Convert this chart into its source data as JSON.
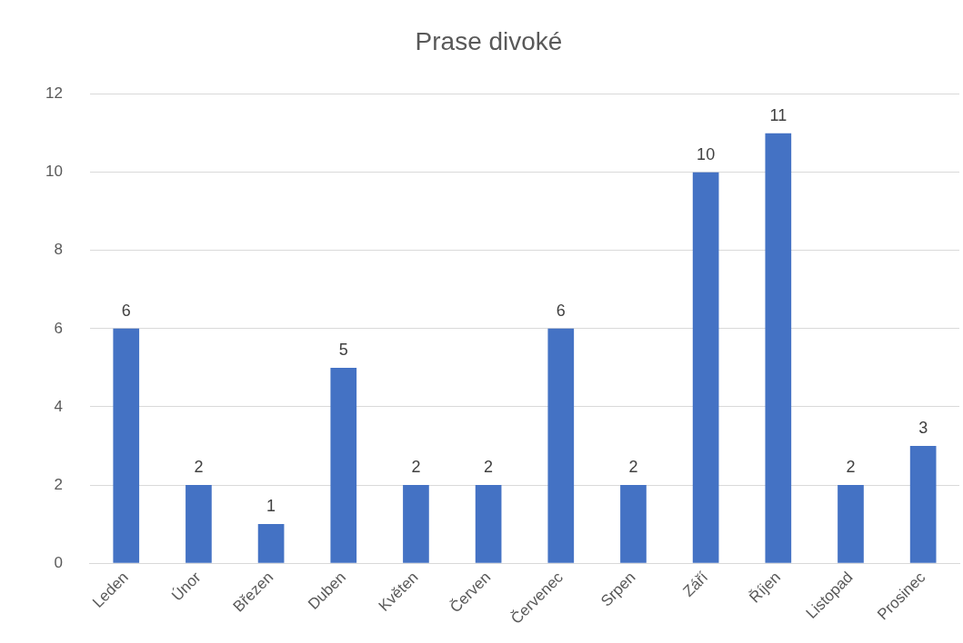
{
  "chart_data": {
    "type": "bar",
    "title": "Prase divoké",
    "categories": [
      "Leden",
      "Únor",
      "Březen",
      "Duben",
      "Květen",
      "Červen",
      "Červenec",
      "Srpen",
      "Září",
      "Říjen",
      "Listopad",
      "Prosinec"
    ],
    "values": [
      6,
      2,
      1,
      5,
      2,
      2,
      6,
      2,
      10,
      11,
      2,
      3
    ],
    "color": "#4472c4",
    "ylim": [
      0,
      12
    ],
    "yticks": [
      0,
      2,
      4,
      6,
      8,
      10,
      12
    ],
    "grid": "y",
    "data_labels": true
  }
}
